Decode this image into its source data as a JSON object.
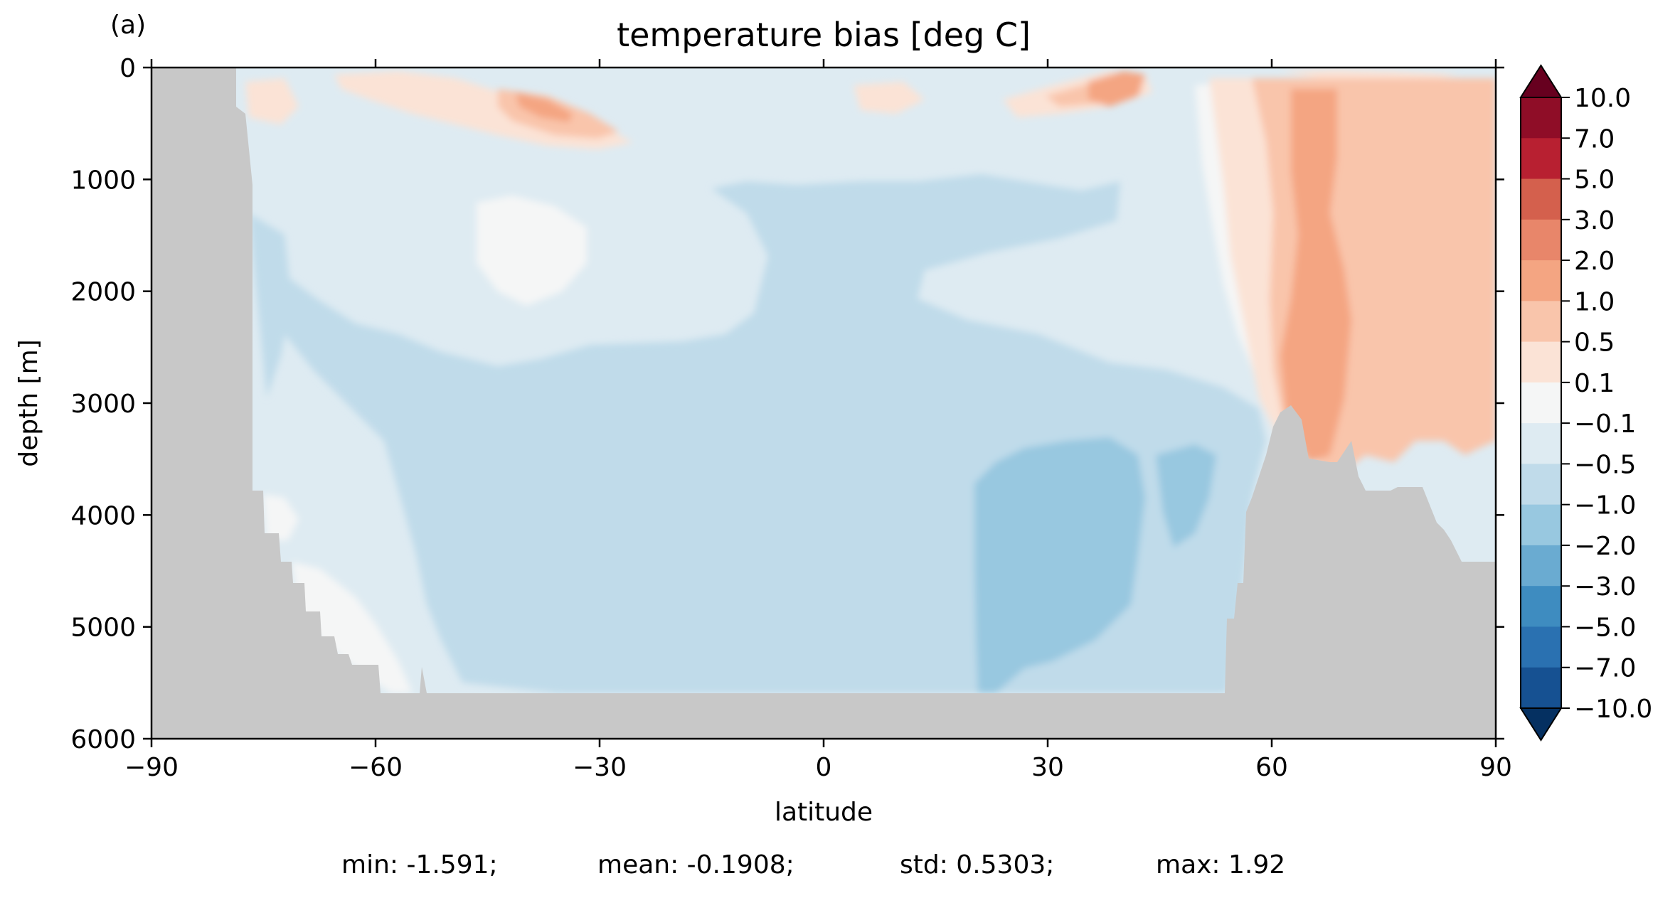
{
  "chart_data": {
    "type": "heatmap",
    "panel_label": "(a)",
    "title": "temperature bias [deg C]",
    "xlabel": "latitude",
    "ylabel": "depth [m]",
    "xlim": [
      -90,
      90
    ],
    "ylim": [
      6000,
      0
    ],
    "xticks": [
      "−90",
      "−60",
      "−30",
      "0",
      "30",
      "60",
      "90"
    ],
    "xtick_values": [
      -90,
      -60,
      -30,
      0,
      30,
      60,
      90
    ],
    "yticks": [
      "0",
      "1000",
      "2000",
      "3000",
      "4000",
      "5000",
      "6000"
    ],
    "ytick_values": [
      0,
      1000,
      2000,
      3000,
      4000,
      5000,
      6000
    ],
    "colormap": "RdBu_r",
    "extend": "both",
    "land_color": "#c8c8c8",
    "colorbar": {
      "levels": [
        "10.0",
        "7.0",
        "5.0",
        "3.0",
        "2.0",
        "1.0",
        "0.5",
        "0.1",
        "−0.1",
        "−0.5",
        "−1.0",
        "−2.0",
        "−3.0",
        "−5.0",
        "−7.0",
        "−10.0"
      ],
      "level_values": [
        10,
        7,
        5,
        3,
        2,
        1,
        0.5,
        0.1,
        -0.1,
        -0.5,
        -1,
        -2,
        -3,
        -5,
        -7,
        -10
      ],
      "colors": [
        "#8f0d27",
        "#b82031",
        "#d4604d",
        "#e8866a",
        "#f4a582",
        "#f9c5ab",
        "#fbe3d6",
        "#f5f6f6",
        "#deebf2",
        "#c0dbea",
        "#98c8e0",
        "#6aabd1",
        "#3e8cc0",
        "#2a71b1",
        "#165192"
      ],
      "over_color": "#67001f",
      "under_color": "#053061"
    },
    "stats": {
      "min": "min: -1.591;",
      "mean": "mean: -0.1908;",
      "std": "std: 0.5303;",
      "max": "max: 1.92"
    }
  }
}
